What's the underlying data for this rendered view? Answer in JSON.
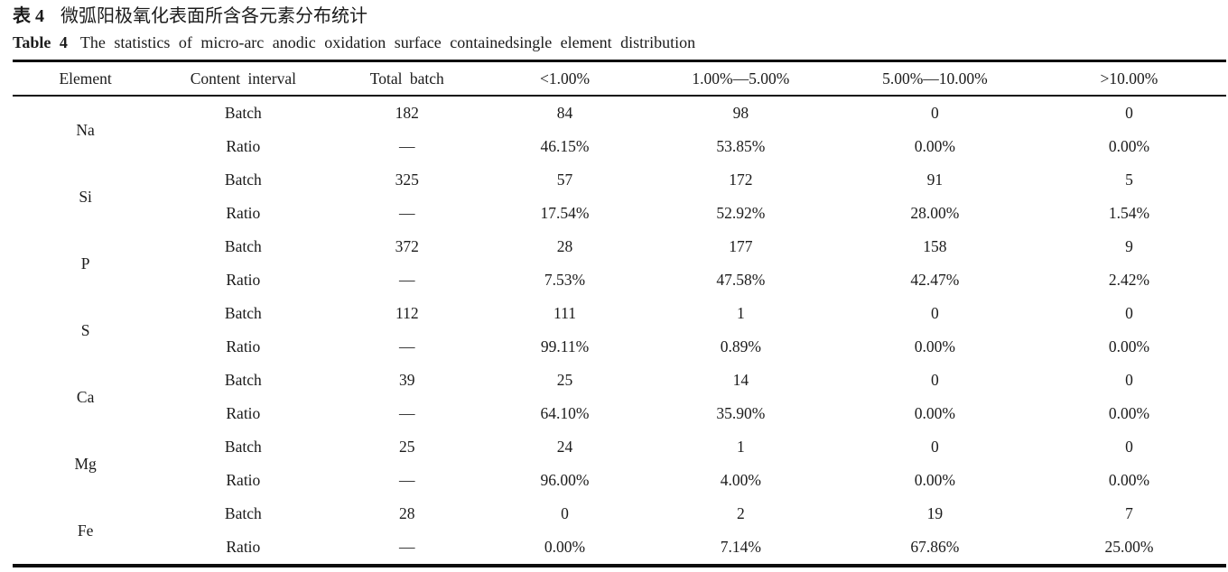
{
  "title": {
    "zh_label": "表 4",
    "zh_text": "微弧阳极氧化表面所含各元素分布统计",
    "en_label": "Table 4",
    "en_text": "The statistics of micro-arc anodic oxidation surface containedsingle element distribution"
  },
  "table": {
    "headers": [
      "Element",
      "Content interval",
      "Total batch",
      "<1.00%",
      "1.00%—5.00%",
      "5.00%—10.00%",
      ">10.00%"
    ],
    "row_labels": {
      "batch": "Batch",
      "ratio": "Ratio"
    },
    "elements": [
      {
        "element": "Na",
        "batch": [
          "182",
          "84",
          "98",
          "0",
          "0"
        ],
        "ratio": [
          "—",
          "46.15%",
          "53.85%",
          "0.00%",
          "0.00%"
        ]
      },
      {
        "element": "Si",
        "batch": [
          "325",
          "57",
          "172",
          "91",
          "5"
        ],
        "ratio": [
          "—",
          "17.54%",
          "52.92%",
          "28.00%",
          "1.54%"
        ]
      },
      {
        "element": "P",
        "batch": [
          "372",
          "28",
          "177",
          "158",
          "9"
        ],
        "ratio": [
          "—",
          "7.53%",
          "47.58%",
          "42.47%",
          "2.42%"
        ]
      },
      {
        "element": "S",
        "batch": [
          "112",
          "111",
          "1",
          "0",
          "0"
        ],
        "ratio": [
          "—",
          "99.11%",
          "0.89%",
          "0.00%",
          "0.00%"
        ]
      },
      {
        "element": "Ca",
        "batch": [
          "39",
          "25",
          "14",
          "0",
          "0"
        ],
        "ratio": [
          "—",
          "64.10%",
          "35.90%",
          "0.00%",
          "0.00%"
        ]
      },
      {
        "element": "Mg",
        "batch": [
          "25",
          "24",
          "1",
          "0",
          "0"
        ],
        "ratio": [
          "—",
          "96.00%",
          "4.00%",
          "0.00%",
          "0.00%"
        ]
      },
      {
        "element": "Fe",
        "batch": [
          "28",
          "0",
          "2",
          "19",
          "7"
        ],
        "ratio": [
          "—",
          "0.00%",
          "7.14%",
          "67.86%",
          "25.00%"
        ]
      }
    ]
  },
  "colors": {
    "text": "#1b1b1b",
    "rule": "#0d0d0d",
    "background": "#ffffff"
  }
}
